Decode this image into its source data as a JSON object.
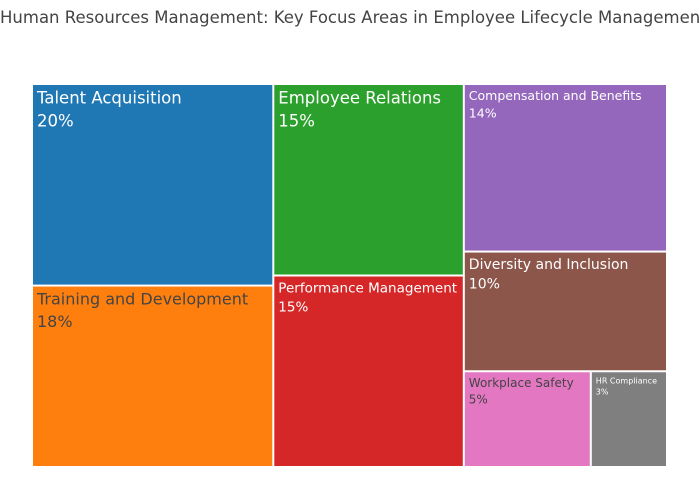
{
  "chart_data": {
    "type": "treemap",
    "title": "Human Resources Management: Key Focus Areas in Employee Lifecycle Management",
    "value_suffix": "%",
    "items": [
      {
        "label": "Talent Acquisition",
        "value": 20,
        "color": "#1f77b4",
        "text_color": "#ffffff"
      },
      {
        "label": "Training and Development",
        "value": 18,
        "color": "#ff7f0e",
        "text_color": "#444444"
      },
      {
        "label": "Employee Relations",
        "value": 15,
        "color": "#2ca02c",
        "text_color": "#ffffff"
      },
      {
        "label": "Performance Management",
        "value": 15,
        "color": "#d62728",
        "text_color": "#ffffff"
      },
      {
        "label": "Compensation and Benefits",
        "value": 14,
        "color": "#9467bd",
        "text_color": "#ffffff"
      },
      {
        "label": "Diversity and Inclusion",
        "value": 10,
        "color": "#8c564b",
        "text_color": "#ffffff"
      },
      {
        "label": "Workplace Safety",
        "value": 5,
        "color": "#e377c2",
        "text_color": "#444444"
      },
      {
        "label": "HR Compliance",
        "value": 3,
        "color": "#7f7f7f",
        "text_color": "#ffffff"
      }
    ]
  }
}
